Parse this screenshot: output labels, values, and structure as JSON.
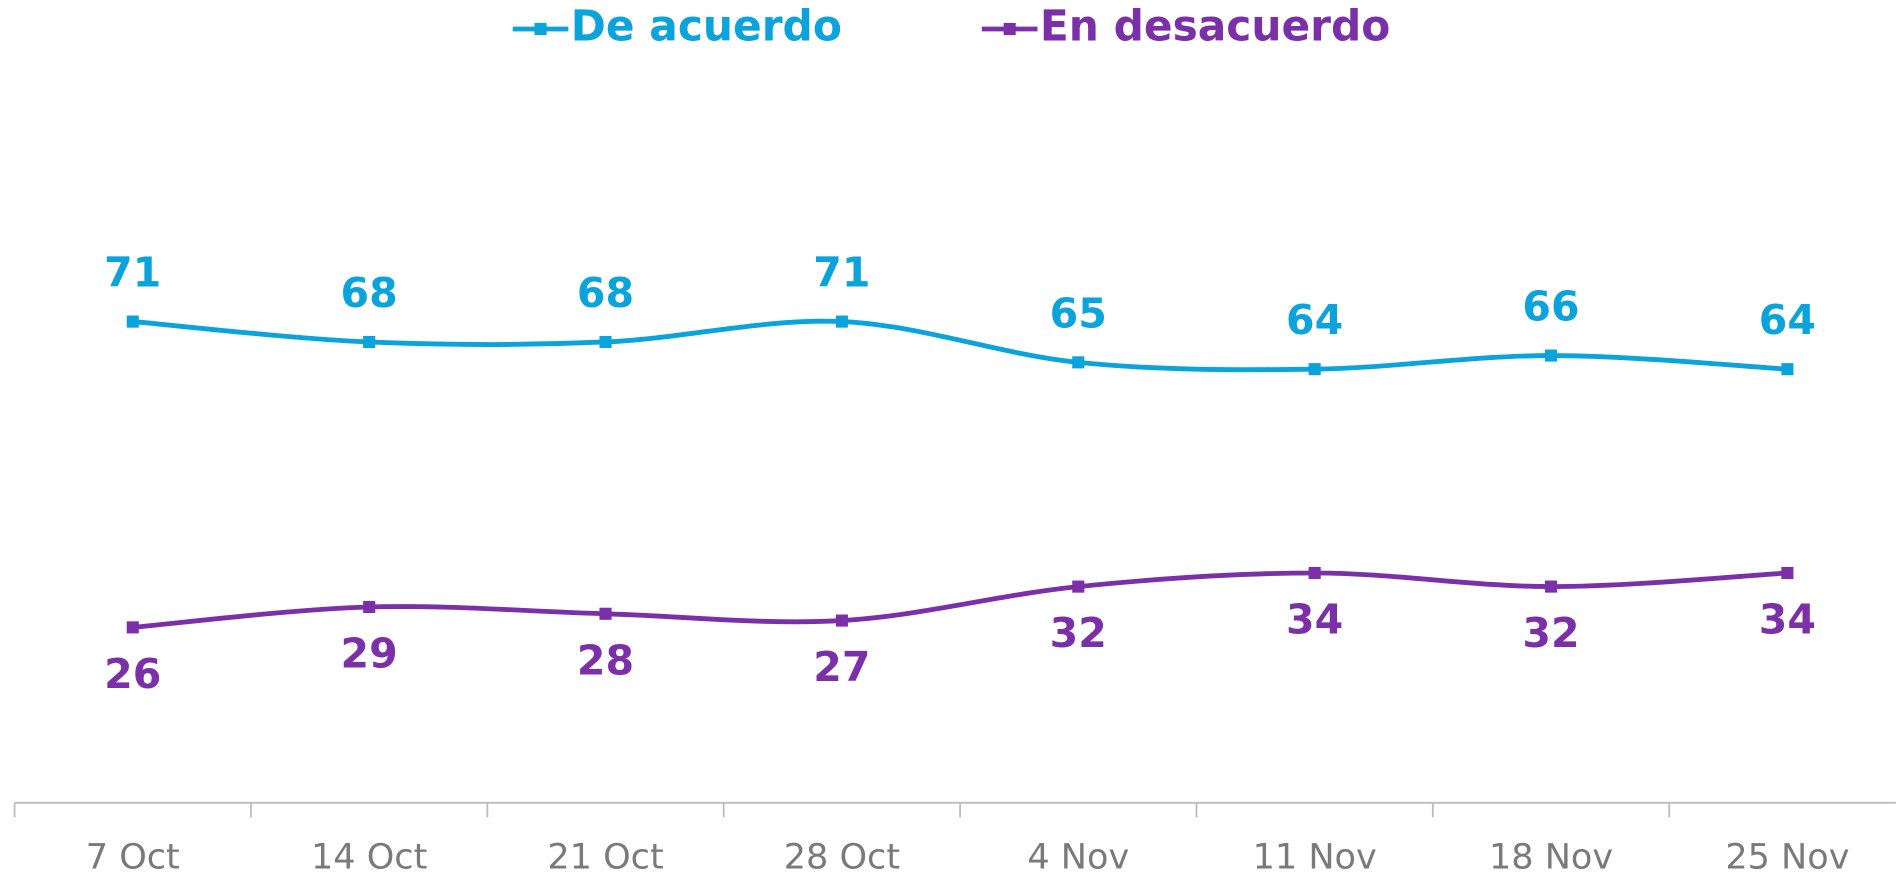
{
  "chart_data": {
    "type": "line",
    "smooth": true,
    "categories": [
      "7 Oct",
      "14 Oct",
      "21 Oct",
      "28 Oct",
      "4 Nov",
      "11 Nov",
      "18 Nov",
      "25 Nov"
    ],
    "series": [
      {
        "name": "De acuerdo",
        "color": "#0aa3dc",
        "values": [
          71,
          68,
          68,
          71,
          65,
          64,
          66,
          64
        ]
      },
      {
        "name": "En desacuerdo",
        "color": "#7b2fa8",
        "values": [
          26,
          29,
          28,
          27,
          32,
          34,
          32,
          34
        ]
      }
    ],
    "ylim": [
      0,
      100
    ],
    "grid": false,
    "legend": "top"
  }
}
